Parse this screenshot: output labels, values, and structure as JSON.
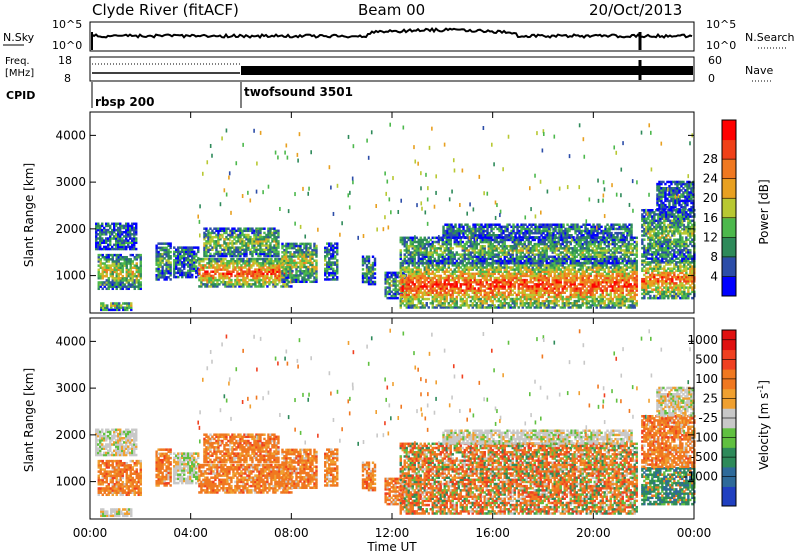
{
  "header": {
    "station": "Clyde River (fitACF)",
    "beam": "Beam 00",
    "date": "20/Oct/2013"
  },
  "status_panels": {
    "nsky_label": "N.Sky",
    "nsky_top": "10^5",
    "nsky_bottom": "10^0",
    "nsearch_label": "N.Search",
    "nsearch_top": "10^5",
    "nsearch_bottom": "10^0",
    "freq_label_1": "Freq.",
    "freq_label_2": "[MHz]",
    "freq_top": "18",
    "freq_bottom": "8",
    "nave_label": "Nave",
    "nave_top": "60",
    "nave_bottom": "0",
    "cpid_label": "CPID",
    "cpid_segments": [
      {
        "label": "rbsp 200",
        "start_hour": 0,
        "end_hour": 6
      },
      {
        "label": "twofsound 3501",
        "start_hour": 6,
        "end_hour": 24
      }
    ]
  },
  "x_axis": {
    "label": "Time UT",
    "ticks": [
      "00:00",
      "04:00",
      "08:00",
      "12:00",
      "16:00",
      "20:00",
      "00:00"
    ]
  },
  "chart_data": [
    {
      "type": "heatmap",
      "ylabel": "Slant Range [km]",
      "y_ticks": [
        "1000",
        "2000",
        "3000",
        "4000"
      ],
      "ylim": [
        200,
        4500
      ],
      "xlim_hours": [
        0,
        24
      ],
      "colorbar": {
        "label": "Power [dB]",
        "ticks": [
          "4",
          "8",
          "12",
          "16",
          "20",
          "24",
          "28"
        ],
        "colors": [
          "#0000ff",
          "#2c4da8",
          "#2e8a5a",
          "#4cb84c",
          "#b8c832",
          "#e8a020",
          "#f07820",
          "#f04018",
          "#ff0000"
        ]
      }
    },
    {
      "type": "heatmap",
      "ylabel": "Slant Range [km]",
      "y_ticks": [
        "1000",
        "2000",
        "3000",
        "4000"
      ],
      "ylim": [
        200,
        4500
      ],
      "xlim_hours": [
        0,
        24
      ],
      "colorbar": {
        "label": "Velocity  [m s^-1]",
        "ticks": [
          "1000",
          "500",
          "100",
          "25",
          "-25",
          "-100",
          "-500",
          "-1000"
        ],
        "colors": [
          "#2040c0",
          "#2e6a9a",
          "#2e8a5a",
          "#60c040",
          "#c8c8c8",
          "#f0a030",
          "#f07820",
          "#f04020",
          "#e01010"
        ]
      }
    }
  ]
}
